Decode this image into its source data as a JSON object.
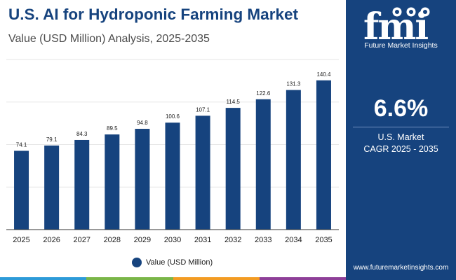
{
  "header": {
    "title": "U.S. AI for Hydroponic Farming Market",
    "subtitle": "Value (USD Million) Analysis, 2025-2035"
  },
  "chart_data": {
    "type": "bar",
    "categories": [
      "2025",
      "2026",
      "2027",
      "2028",
      "2029",
      "2030",
      "2031",
      "2032",
      "2033",
      "2034",
      "2035"
    ],
    "series": [
      {
        "name": "Value (USD Million)",
        "values": [
          74.1,
          79.1,
          84.3,
          89.5,
          94.8,
          100.6,
          107.1,
          114.5,
          122.6,
          131.3,
          140.4
        ],
        "color": "#16437e"
      }
    ],
    "value_labels": [
      "74.1",
      "79.1",
      "84.3",
      "89.5",
      "94.8",
      "100.6",
      "107.1",
      "114.5",
      "122.6",
      "131.3",
      "140.4"
    ],
    "ylim": [
      0,
      160
    ],
    "grid": true,
    "legend": "bottom"
  },
  "legend": {
    "label": "Value (USD Million)"
  },
  "panel": {
    "logo_text": "Future Market Insights",
    "kpi_value": "6.6%",
    "kpi_line1": "U.S. Market",
    "kpi_line2": "CAGR 2025 - 2035",
    "website": "www.futuremarketinsights.com"
  },
  "colors": {
    "brand_navy": "#16437e",
    "bottom_bar": [
      "#2d9bd8",
      "#7ab648",
      "#f39c23",
      "#8e3f98"
    ]
  }
}
